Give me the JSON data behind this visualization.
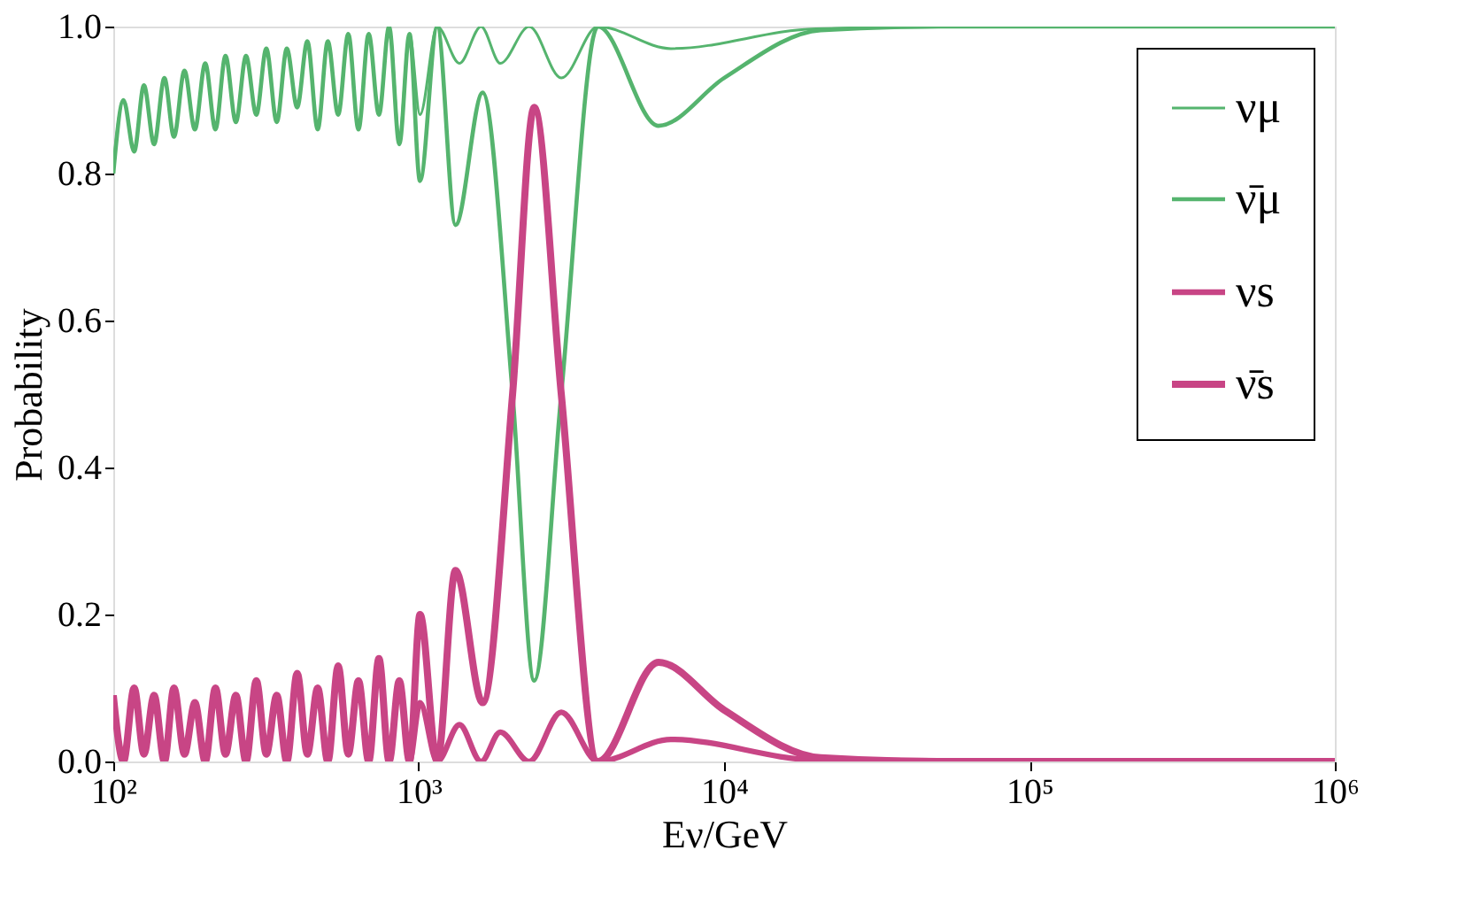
{
  "chart_data": {
    "type": "line",
    "xlabel": "Eν/GeV",
    "ylabel": "Probability",
    "log": "x",
    "grid": false,
    "legend": "top right",
    "marker": "none",
    "line_style": "solid",
    "xlim": [
      100,
      1000000
    ],
    "ylim": [
      0,
      1
    ],
    "xticks": [
      {
        "value": 100,
        "label": "10²"
      },
      {
        "value": 1000,
        "label": "10³"
      },
      {
        "value": 10000,
        "label": "10⁴"
      },
      {
        "value": 100000,
        "label": "10⁵"
      },
      {
        "value": 1000000,
        "label": "10⁶"
      }
    ],
    "yticks": [
      {
        "value": 0,
        "label": "0.0"
      },
      {
        "value": 0.2,
        "label": "0.2"
      },
      {
        "value": 0.4,
        "label": "0.4"
      },
      {
        "value": 0.6,
        "label": "0.6"
      },
      {
        "value": 0.8,
        "label": "0.8"
      },
      {
        "value": 1,
        "label": "1.0"
      }
    ],
    "series": [
      {
        "name": "νμ",
        "color": "#55b46e",
        "x": [
          100,
          108,
          117,
          126,
          136,
          147,
          158,
          171,
          185,
          200,
          216,
          233,
          252,
          272,
          294,
          317,
          343,
          370,
          400,
          432,
          467,
          504,
          545,
          588,
          635,
          686,
          741,
          800,
          864,
          933,
          1010,
          1150,
          1360,
          1600,
          1850,
          2300,
          2930,
          3860,
          6700,
          20000,
          100000,
          1000000
        ],
        "values": [
          0.81,
          0.9,
          0.83,
          0.92,
          0.84,
          0.93,
          0.85,
          0.94,
          0.86,
          0.95,
          0.86,
          0.96,
          0.87,
          0.96,
          0.88,
          0.97,
          0.87,
          0.97,
          0.89,
          0.98,
          0.86,
          0.98,
          0.88,
          0.99,
          0.86,
          0.99,
          0.88,
          1.0,
          0.85,
          0.99,
          0.88,
          1.0,
          0.95,
          1.0,
          0.95,
          1.0,
          0.93,
          1.0,
          0.97,
          0.997,
          1.0,
          1.0
        ]
      },
      {
        "name": "ν̄μ",
        "color": "#55b46e",
        "x": [
          100,
          108,
          117,
          126,
          136,
          147,
          158,
          171,
          185,
          200,
          216,
          233,
          252,
          272,
          294,
          317,
          343,
          370,
          400,
          432,
          467,
          504,
          545,
          588,
          635,
          686,
          741,
          800,
          864,
          933,
          1010,
          1150,
          1320,
          1620,
          2030,
          2390,
          2930,
          3860,
          6100,
          10000,
          20700,
          50000,
          100000,
          1000000
        ],
        "values": [
          0.8,
          0.9,
          0.83,
          0.92,
          0.84,
          0.93,
          0.85,
          0.94,
          0.86,
          0.95,
          0.86,
          0.96,
          0.87,
          0.96,
          0.88,
          0.97,
          0.87,
          0.97,
          0.89,
          0.98,
          0.86,
          0.98,
          0.88,
          0.99,
          0.86,
          0.99,
          0.88,
          1.0,
          0.84,
          0.99,
          0.79,
          1.0,
          0.73,
          0.91,
          0.5,
          0.11,
          0.5,
          1.0,
          0.865,
          0.93,
          0.995,
          1.0,
          1.0,
          1.0
        ]
      },
      {
        "name": "νs",
        "color": "#c84585",
        "x": [
          100,
          108,
          117,
          126,
          136,
          147,
          158,
          171,
          185,
          200,
          216,
          233,
          252,
          272,
          294,
          317,
          343,
          370,
          400,
          432,
          467,
          504,
          545,
          588,
          635,
          686,
          741,
          800,
          864,
          933,
          1010,
          1150,
          1360,
          1600,
          1850,
          2300,
          2930,
          3860,
          6700,
          20000,
          100000,
          1000000
        ],
        "values": [
          0.09,
          0.0,
          0.1,
          0.01,
          0.09,
          0.0,
          0.1,
          0.01,
          0.08,
          0.0,
          0.1,
          0.01,
          0.09,
          0.0,
          0.11,
          0.01,
          0.09,
          0.0,
          0.12,
          0.01,
          0.1,
          0.0,
          0.13,
          0.01,
          0.11,
          0.0,
          0.14,
          0.0,
          0.11,
          0.0,
          0.08,
          0.0,
          0.05,
          0.0,
          0.04,
          0.0,
          0.067,
          0.0,
          0.03,
          0.002,
          0.0,
          0.0
        ]
      },
      {
        "name": "ν̄s",
        "color": "#c84585",
        "x": [
          100,
          108,
          117,
          126,
          136,
          147,
          158,
          171,
          185,
          200,
          216,
          233,
          252,
          272,
          294,
          317,
          343,
          370,
          400,
          432,
          467,
          504,
          545,
          588,
          635,
          686,
          741,
          800,
          864,
          933,
          1010,
          1150,
          1320,
          1620,
          2030,
          2390,
          2930,
          3860,
          6100,
          10000,
          20700,
          50000,
          100000,
          1000000
        ],
        "values": [
          0.09,
          0.0,
          0.1,
          0.01,
          0.09,
          0.0,
          0.1,
          0.01,
          0.08,
          0.0,
          0.1,
          0.01,
          0.09,
          0.0,
          0.11,
          0.01,
          0.09,
          0.0,
          0.12,
          0.01,
          0.1,
          0.0,
          0.13,
          0.01,
          0.11,
          0.0,
          0.14,
          0.0,
          0.11,
          0.0,
          0.2,
          0.0,
          0.26,
          0.08,
          0.5,
          0.89,
          0.5,
          0.0,
          0.135,
          0.07,
          0.005,
          0.0,
          0.0,
          0.0
        ]
      }
    ]
  }
}
